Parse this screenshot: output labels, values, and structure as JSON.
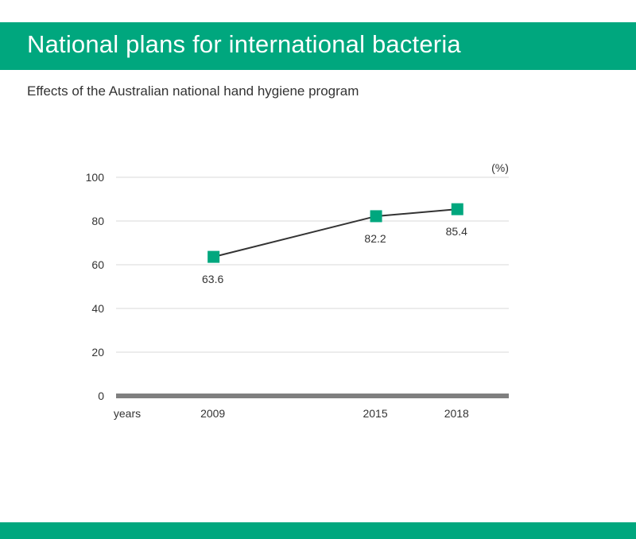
{
  "header": {
    "title": "National plans for international bacteria"
  },
  "subtitle": "Effects of the Australian national hand hygiene program",
  "colors": {
    "brand_green": "#00a77e",
    "marker_green": "#00a77e",
    "line": "#333333",
    "axis": "#7f7f7f",
    "grid": "#d9d9d9"
  },
  "chart_data": {
    "type": "line",
    "unit_label": "(%)",
    "x_axis_prefix": "years",
    "x": [
      2009,
      2015,
      2018
    ],
    "series": [
      {
        "values": [
          63.6,
          82.2,
          85.4
        ],
        "labels": [
          "63.6",
          "82.2",
          "85.4"
        ]
      }
    ],
    "xlim": [
      2005.4,
      2019.9
    ],
    "ylim": [
      0,
      100
    ],
    "yticks": [
      0,
      20,
      40,
      60,
      80,
      100
    ],
    "grid": true,
    "legend": "none"
  }
}
